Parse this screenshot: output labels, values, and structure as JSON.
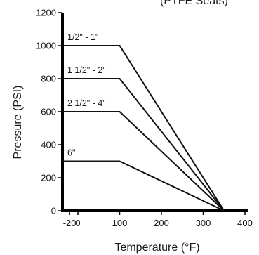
{
  "chart_data": {
    "type": "line",
    "title": "(PTFE Seats)",
    "xlabel": "Temperature (°F)",
    "ylabel": "Pressure (PSI)",
    "xlim": [
      -20,
      400
    ],
    "ylim": [
      0,
      1200
    ],
    "x_ticks": [
      -20,
      0,
      100,
      200,
      300,
      400
    ],
    "y_ticks": [
      0,
      200,
      400,
      600,
      800,
      1000,
      1200
    ],
    "grid": false,
    "colors": {
      "axis": "#000000",
      "line": "#111111"
    },
    "series": [
      {
        "name": "1/2\" - 1\"",
        "x": [
          -20,
          100,
          350
        ],
        "y": [
          1000,
          1000,
          0
        ]
      },
      {
        "name": "1 1/2\" - 2\"",
        "x": [
          -20,
          100,
          350
        ],
        "y": [
          800,
          800,
          0
        ]
      },
      {
        "name": "2 1/2\" - 4\"",
        "x": [
          -20,
          100,
          350
        ],
        "y": [
          600,
          600,
          0
        ]
      },
      {
        "name": "6\"",
        "x": [
          -20,
          100,
          350
        ],
        "y": [
          300,
          300,
          0
        ]
      }
    ]
  }
}
